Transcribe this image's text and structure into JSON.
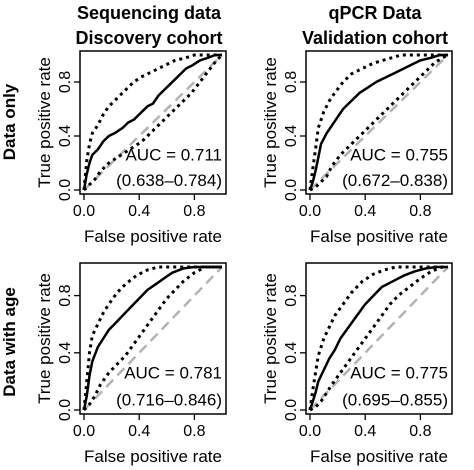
{
  "columns": [
    {
      "title_line1": "Sequencing data",
      "title_line2": "Discovery cohort"
    },
    {
      "title_line1": "qPCR Data",
      "title_line2": "Validation cohort"
    }
  ],
  "rows": [
    {
      "label": "Data only"
    },
    {
      "label": "Data with age"
    }
  ],
  "colors": {
    "roc": "#000000",
    "ci": "#000000",
    "reference": "#b3b3b3"
  },
  "chart_data": [
    {
      "type": "line",
      "xlabel": "False positive rate",
      "ylabel": "True positive rate",
      "xticks": [
        "0.0",
        "0.4",
        "0.8"
      ],
      "yticks": [
        "0.0",
        "0.4",
        "0.8"
      ],
      "xlim": [
        0,
        1
      ],
      "ylim": [
        0,
        1
      ],
      "auc_label": "AUC = 0.711",
      "ci_label": "(0.638–0.784)",
      "roc": [
        [
          0,
          0
        ],
        [
          0.02,
          0.12
        ],
        [
          0.04,
          0.2
        ],
        [
          0.06,
          0.26
        ],
        [
          0.1,
          0.3
        ],
        [
          0.14,
          0.36
        ],
        [
          0.18,
          0.4
        ],
        [
          0.22,
          0.42
        ],
        [
          0.28,
          0.46
        ],
        [
          0.32,
          0.5
        ],
        [
          0.36,
          0.52
        ],
        [
          0.42,
          0.58
        ],
        [
          0.46,
          0.62
        ],
        [
          0.5,
          0.64
        ],
        [
          0.54,
          0.7
        ],
        [
          0.58,
          0.74
        ],
        [
          0.62,
          0.78
        ],
        [
          0.66,
          0.82
        ],
        [
          0.7,
          0.86
        ],
        [
          0.74,
          0.9
        ],
        [
          0.78,
          0.92
        ],
        [
          0.84,
          0.96
        ],
        [
          0.9,
          0.98
        ],
        [
          0.95,
          1
        ],
        [
          1,
          1
        ]
      ],
      "ci_upper": [
        [
          0,
          0
        ],
        [
          0.02,
          0.22
        ],
        [
          0.04,
          0.34
        ],
        [
          0.06,
          0.42
        ],
        [
          0.1,
          0.48
        ],
        [
          0.14,
          0.56
        ],
        [
          0.18,
          0.62
        ],
        [
          0.22,
          0.66
        ],
        [
          0.26,
          0.7
        ],
        [
          0.3,
          0.74
        ],
        [
          0.36,
          0.8
        ],
        [
          0.42,
          0.84
        ],
        [
          0.5,
          0.88
        ],
        [
          0.58,
          0.92
        ],
        [
          0.66,
          0.96
        ],
        [
          0.74,
          0.98
        ],
        [
          0.8,
          1
        ],
        [
          1,
          1
        ]
      ],
      "ci_lower": [
        [
          0,
          0
        ],
        [
          0.04,
          0.04
        ],
        [
          0.08,
          0.08
        ],
        [
          0.12,
          0.14
        ],
        [
          0.18,
          0.2
        ],
        [
          0.24,
          0.24
        ],
        [
          0.3,
          0.28
        ],
        [
          0.36,
          0.32
        ],
        [
          0.42,
          0.36
        ],
        [
          0.48,
          0.42
        ],
        [
          0.54,
          0.48
        ],
        [
          0.6,
          0.54
        ],
        [
          0.66,
          0.6
        ],
        [
          0.72,
          0.66
        ],
        [
          0.78,
          0.72
        ],
        [
          0.84,
          0.8
        ],
        [
          0.9,
          0.88
        ],
        [
          0.96,
          0.96
        ],
        [
          1,
          1
        ]
      ]
    },
    {
      "type": "line",
      "xlabel": "False positive rate",
      "ylabel": "True positive rate",
      "xticks": [
        "0.0",
        "0.4",
        "0.8"
      ],
      "yticks": [
        "0.0",
        "0.4",
        "0.8"
      ],
      "xlim": [
        0,
        1
      ],
      "ylim": [
        0,
        1
      ],
      "auc_label": "AUC = 0.755",
      "ci_label": "(0.672–0.838)",
      "roc": [
        [
          0,
          0
        ],
        [
          0.02,
          0.06
        ],
        [
          0.04,
          0.14
        ],
        [
          0.06,
          0.24
        ],
        [
          0.08,
          0.34
        ],
        [
          0.12,
          0.42
        ],
        [
          0.16,
          0.48
        ],
        [
          0.2,
          0.54
        ],
        [
          0.24,
          0.6
        ],
        [
          0.3,
          0.66
        ],
        [
          0.36,
          0.72
        ],
        [
          0.42,
          0.76
        ],
        [
          0.48,
          0.8
        ],
        [
          0.56,
          0.84
        ],
        [
          0.64,
          0.88
        ],
        [
          0.72,
          0.92
        ],
        [
          0.8,
          0.96
        ],
        [
          0.88,
          0.98
        ],
        [
          0.94,
          1
        ],
        [
          1,
          1
        ]
      ],
      "ci_upper": [
        [
          0,
          0
        ],
        [
          0.02,
          0.16
        ],
        [
          0.04,
          0.3
        ],
        [
          0.06,
          0.46
        ],
        [
          0.1,
          0.58
        ],
        [
          0.14,
          0.66
        ],
        [
          0.18,
          0.72
        ],
        [
          0.24,
          0.8
        ],
        [
          0.3,
          0.86
        ],
        [
          0.38,
          0.9
        ],
        [
          0.46,
          0.94
        ],
        [
          0.56,
          0.97
        ],
        [
          0.66,
          1
        ],
        [
          1,
          1
        ]
      ],
      "ci_lower": [
        [
          0,
          0
        ],
        [
          0.04,
          0.02
        ],
        [
          0.08,
          0.06
        ],
        [
          0.12,
          0.1
        ],
        [
          0.16,
          0.18
        ],
        [
          0.22,
          0.26
        ],
        [
          0.28,
          0.32
        ],
        [
          0.34,
          0.38
        ],
        [
          0.42,
          0.46
        ],
        [
          0.5,
          0.54
        ],
        [
          0.58,
          0.62
        ],
        [
          0.66,
          0.7
        ],
        [
          0.74,
          0.78
        ],
        [
          0.82,
          0.86
        ],
        [
          0.9,
          0.94
        ],
        [
          0.96,
          0.98
        ],
        [
          1,
          1
        ]
      ]
    },
    {
      "type": "line",
      "xlabel": "False positive rate",
      "ylabel": "True positive rate",
      "xticks": [
        "0.0",
        "0.4",
        "0.8"
      ],
      "yticks": [
        "0.0",
        "0.4",
        "0.8"
      ],
      "xlim": [
        0,
        1
      ],
      "ylim": [
        0,
        1
      ],
      "auc_label": "AUC = 0.781",
      "ci_label": "(0.716–0.846)",
      "roc": [
        [
          0,
          0
        ],
        [
          0.02,
          0.1
        ],
        [
          0.04,
          0.24
        ],
        [
          0.06,
          0.34
        ],
        [
          0.1,
          0.44
        ],
        [
          0.14,
          0.5
        ],
        [
          0.18,
          0.56
        ],
        [
          0.22,
          0.6
        ],
        [
          0.28,
          0.66
        ],
        [
          0.34,
          0.72
        ],
        [
          0.4,
          0.78
        ],
        [
          0.46,
          0.84
        ],
        [
          0.52,
          0.88
        ],
        [
          0.58,
          0.92
        ],
        [
          0.64,
          0.96
        ],
        [
          0.72,
          0.99
        ],
        [
          0.8,
          1
        ],
        [
          1,
          1
        ]
      ],
      "ci_upper": [
        [
          0,
          0
        ],
        [
          0.02,
          0.2
        ],
        [
          0.04,
          0.4
        ],
        [
          0.06,
          0.52
        ],
        [
          0.1,
          0.6
        ],
        [
          0.14,
          0.68
        ],
        [
          0.18,
          0.74
        ],
        [
          0.24,
          0.82
        ],
        [
          0.3,
          0.88
        ],
        [
          0.38,
          0.94
        ],
        [
          0.46,
          0.98
        ],
        [
          0.54,
          1
        ],
        [
          1,
          1
        ]
      ],
      "ci_lower": [
        [
          0,
          0
        ],
        [
          0.04,
          0.04
        ],
        [
          0.08,
          0.1
        ],
        [
          0.12,
          0.18
        ],
        [
          0.18,
          0.26
        ],
        [
          0.24,
          0.32
        ],
        [
          0.3,
          0.38
        ],
        [
          0.36,
          0.46
        ],
        [
          0.42,
          0.54
        ],
        [
          0.48,
          0.62
        ],
        [
          0.54,
          0.7
        ],
        [
          0.6,
          0.78
        ],
        [
          0.66,
          0.84
        ],
        [
          0.72,
          0.9
        ],
        [
          0.8,
          0.96
        ],
        [
          0.88,
          1
        ],
        [
          1,
          1
        ]
      ]
    },
    {
      "type": "line",
      "xlabel": "False positive rate",
      "ylabel": "True positive rate",
      "xticks": [
        "0.0",
        "0.4",
        "0.8"
      ],
      "yticks": [
        "0.0",
        "0.4",
        "0.8"
      ],
      "xlim": [
        0,
        1
      ],
      "ylim": [
        0,
        1
      ],
      "auc_label": "AUC = 0.775",
      "ci_label": "(0.695–0.855)",
      "roc": [
        [
          0,
          0
        ],
        [
          0.02,
          0.06
        ],
        [
          0.04,
          0.12
        ],
        [
          0.06,
          0.2
        ],
        [
          0.1,
          0.28
        ],
        [
          0.14,
          0.36
        ],
        [
          0.18,
          0.42
        ],
        [
          0.22,
          0.5
        ],
        [
          0.28,
          0.58
        ],
        [
          0.34,
          0.66
        ],
        [
          0.4,
          0.74
        ],
        [
          0.46,
          0.8
        ],
        [
          0.52,
          0.86
        ],
        [
          0.6,
          0.9
        ],
        [
          0.68,
          0.94
        ],
        [
          0.76,
          0.97
        ],
        [
          0.84,
          0.99
        ],
        [
          0.92,
          1
        ],
        [
          1,
          1
        ]
      ],
      "ci_upper": [
        [
          0,
          0
        ],
        [
          0.02,
          0.14
        ],
        [
          0.04,
          0.26
        ],
        [
          0.06,
          0.38
        ],
        [
          0.1,
          0.5
        ],
        [
          0.14,
          0.58
        ],
        [
          0.18,
          0.66
        ],
        [
          0.24,
          0.74
        ],
        [
          0.3,
          0.82
        ],
        [
          0.38,
          0.9
        ],
        [
          0.46,
          0.95
        ],
        [
          0.54,
          0.98
        ],
        [
          0.62,
          1
        ],
        [
          1,
          1
        ]
      ],
      "ci_lower": [
        [
          0,
          0
        ],
        [
          0.04,
          0.02
        ],
        [
          0.08,
          0.06
        ],
        [
          0.12,
          0.12
        ],
        [
          0.16,
          0.18
        ],
        [
          0.22,
          0.26
        ],
        [
          0.28,
          0.34
        ],
        [
          0.34,
          0.42
        ],
        [
          0.4,
          0.5
        ],
        [
          0.46,
          0.58
        ],
        [
          0.52,
          0.66
        ],
        [
          0.58,
          0.74
        ],
        [
          0.64,
          0.8
        ],
        [
          0.72,
          0.86
        ],
        [
          0.8,
          0.92
        ],
        [
          0.88,
          0.97
        ],
        [
          0.96,
          1
        ],
        [
          1,
          1
        ]
      ]
    }
  ]
}
